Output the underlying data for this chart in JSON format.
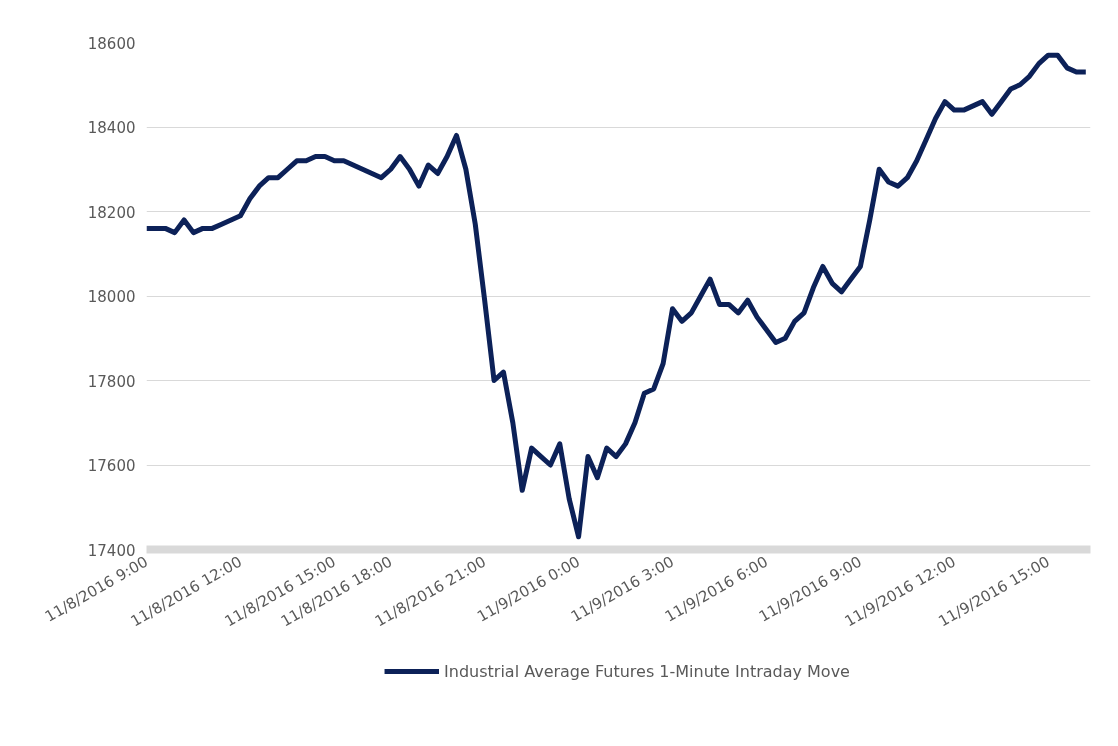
{
  "chart_data": {
    "type": "line",
    "categories": [
      "11/8/2016 9:00",
      null,
      null,
      null,
      null,
      null,
      null,
      null,
      null,
      null,
      "11/8/2016 12:00",
      null,
      null,
      null,
      null,
      null,
      null,
      null,
      null,
      null,
      "11/8/2016 15:00",
      null,
      null,
      null,
      null,
      null,
      "11/8/2016 18:00",
      null,
      null,
      null,
      null,
      null,
      null,
      null,
      null,
      null,
      "11/8/2016 21:00",
      null,
      null,
      null,
      null,
      null,
      null,
      null,
      null,
      null,
      "11/9/2016 0:00",
      null,
      null,
      null,
      null,
      null,
      null,
      null,
      null,
      null,
      "11/9/2016 3:00",
      null,
      null,
      null,
      null,
      null,
      null,
      null,
      null,
      null,
      "11/9/2016 6:00",
      null,
      null,
      null,
      null,
      null,
      null,
      null,
      null,
      null,
      "11/9/2016 9:00",
      null,
      null,
      null,
      null,
      null,
      null,
      null,
      null,
      null,
      "11/9/2016 12:00",
      null,
      null,
      null,
      null,
      null,
      null,
      null,
      null,
      null,
      "11/9/2016 15:00",
      null,
      null,
      null,
      null
    ],
    "series": [
      {
        "name": "Industrial Average Futures 1-Minute Intraday Move",
        "color": "#0c2158",
        "values": [
          18160,
          18160,
          18160,
          18150,
          18180,
          18150,
          18160,
          18160,
          18170,
          18180,
          18190,
          18230,
          18260,
          18280,
          18280,
          18300,
          18320,
          18320,
          18330,
          18330,
          18320,
          18320,
          18310,
          18300,
          18290,
          18280,
          18300,
          18330,
          18300,
          18260,
          18310,
          18290,
          18330,
          18380,
          18300,
          18170,
          17990,
          17800,
          17820,
          17700,
          17540,
          17640,
          17620,
          17600,
          17650,
          17520,
          17430,
          17620,
          17570,
          17640,
          17620,
          17650,
          17700,
          17770,
          17780,
          17840,
          17970,
          17940,
          17960,
          18000,
          18040,
          17980,
          17980,
          17960,
          17990,
          17950,
          17920,
          17890,
          17900,
          17940,
          17960,
          18020,
          18070,
          18030,
          18010,
          18040,
          18070,
          18180,
          18300,
          18270,
          18260,
          18280,
          18320,
          18370,
          18420,
          18460,
          18440,
          18440,
          18450,
          18460,
          18430,
          18460,
          18490,
          18500,
          18520,
          18550,
          18570,
          18570,
          18540,
          18530,
          18530
        ]
      }
    ],
    "ylim": [
      17400,
      18600
    ],
    "yticks": [
      17400,
      17600,
      17800,
      18000,
      18200,
      18400,
      18600
    ],
    "grid": "y",
    "legend": "bottom",
    "marker": "none",
    "line_style": "solid"
  }
}
